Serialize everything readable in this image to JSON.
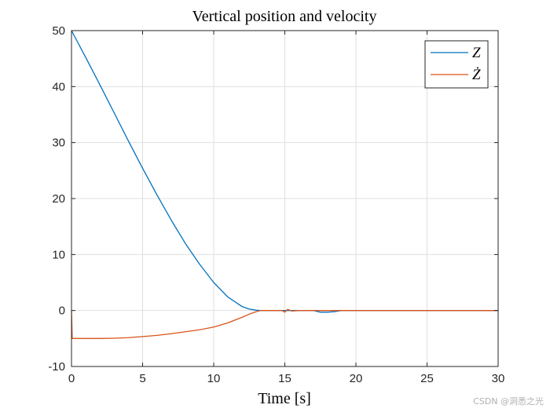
{
  "chart_data": {
    "type": "line",
    "title": "Vertical position and velocity",
    "xlabel": "Time [s]",
    "ylabel": "",
    "xlim": [
      0,
      30
    ],
    "ylim": [
      -10,
      50
    ],
    "xticks": [
      0,
      5,
      10,
      15,
      20,
      25,
      30
    ],
    "yticks": [
      -10,
      0,
      10,
      20,
      30,
      40,
      50
    ],
    "grid": true,
    "legend_position": "top-right",
    "series": [
      {
        "name": "Z",
        "color": "#0072BD",
        "x": [
          0,
          1,
          2,
          3,
          4,
          5,
          6,
          7,
          8,
          9,
          10,
          11,
          12,
          12.5,
          13,
          13.3,
          14,
          15,
          16,
          17,
          17.5,
          18,
          18.5,
          19,
          20,
          22,
          25,
          30
        ],
        "y": [
          50,
          45.2,
          40.3,
          35.3,
          30.3,
          25.4,
          20.7,
          16.2,
          12.0,
          8.3,
          5.0,
          2.4,
          0.7,
          0.25,
          0.05,
          0,
          0,
          0,
          0,
          0,
          -0.3,
          -0.3,
          -0.2,
          0,
          0,
          0,
          0,
          0
        ]
      },
      {
        "name": "Ż",
        "color": "#D95319",
        "x": [
          0,
          0.05,
          1,
          2,
          3,
          4,
          5,
          6,
          7,
          8,
          9,
          10,
          11,
          12,
          12.5,
          13,
          13.3,
          14,
          14.8,
          15,
          15.2,
          15.5,
          16,
          17,
          18,
          20,
          25,
          30
        ],
        "y": [
          0,
          -5,
          -5,
          -5,
          -4.95,
          -4.85,
          -4.65,
          -4.45,
          -4.15,
          -3.8,
          -3.45,
          -2.95,
          -2.2,
          -1.2,
          -0.65,
          -0.2,
          0,
          0,
          0,
          -0.3,
          0.2,
          -0.1,
          0,
          0,
          0,
          0,
          0,
          0
        ]
      }
    ]
  },
  "legend": {
    "entries": [
      "Z",
      "Ż"
    ]
  },
  "watermark": "CSDN @洞悉之光"
}
